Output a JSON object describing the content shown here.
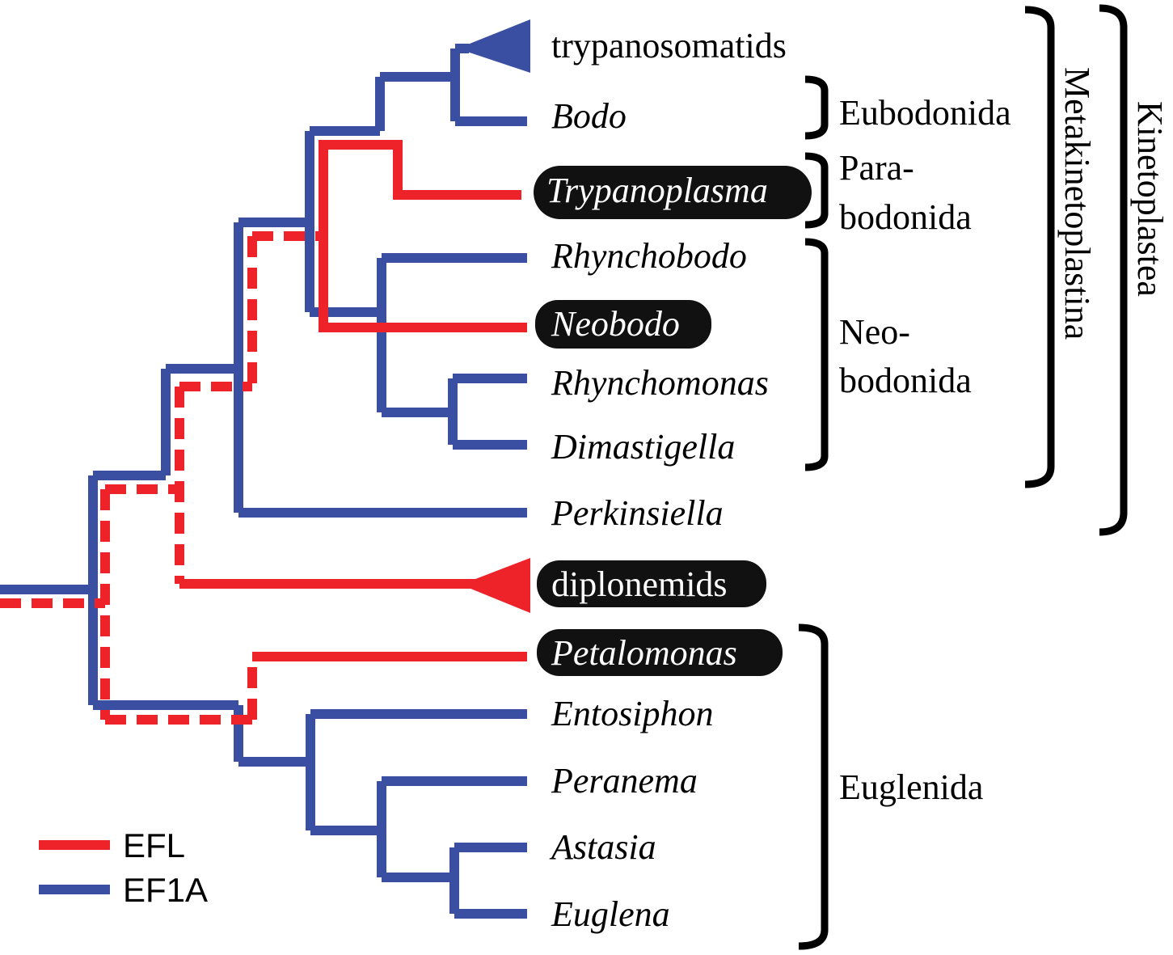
{
  "colors": {
    "efl": "#ee2229",
    "ef1a": "#3a4ea2",
    "bracket": "#000000",
    "highlight_bg": "#111111",
    "highlight_text": "#ffffff"
  },
  "taxa": [
    {
      "id": "trypanosomatids",
      "label": "trypanosomatids",
      "italic": false,
      "highlight": false,
      "gene": "ef1a",
      "clade": true
    },
    {
      "id": "bodo",
      "label": "Bodo",
      "italic": true,
      "highlight": false,
      "gene": "ef1a"
    },
    {
      "id": "trypanoplasma",
      "label": "Trypanoplasma",
      "italic": true,
      "highlight": true,
      "gene": "efl"
    },
    {
      "id": "rhynchobodo",
      "label": "Rhynchobodo",
      "italic": true,
      "highlight": false,
      "gene": "ef1a"
    },
    {
      "id": "neobodo",
      "label": "Neobodo",
      "italic": true,
      "highlight": true,
      "gene": "efl"
    },
    {
      "id": "rhynchomonas",
      "label": "Rhynchomonas",
      "italic": true,
      "highlight": false,
      "gene": "ef1a"
    },
    {
      "id": "dimastigella",
      "label": "Dimastigella",
      "italic": true,
      "highlight": false,
      "gene": "ef1a"
    },
    {
      "id": "perkinsiella",
      "label": "Perkinsiella",
      "italic": true,
      "highlight": false,
      "gene": "ef1a"
    },
    {
      "id": "diplonemids",
      "label": "diplonemids",
      "italic": false,
      "highlight": true,
      "gene": "efl",
      "clade": true
    },
    {
      "id": "petalomonas",
      "label": "Petalomonas",
      "italic": true,
      "highlight": true,
      "gene": "efl"
    },
    {
      "id": "entosiphon",
      "label": "Entosiphon",
      "italic": true,
      "highlight": false,
      "gene": "ef1a"
    },
    {
      "id": "peranema",
      "label": "Peranema",
      "italic": true,
      "highlight": false,
      "gene": "ef1a"
    },
    {
      "id": "astasia",
      "label": "Astasia",
      "italic": true,
      "highlight": false,
      "gene": "ef1a"
    },
    {
      "id": "euglena",
      "label": "Euglena",
      "italic": true,
      "highlight": false,
      "gene": "ef1a"
    }
  ],
  "groups": {
    "eubodonida": "Eubodonida",
    "parabodonida": [
      "Para-",
      "bodonida"
    ],
    "neobodonida": [
      "Neo-",
      "bodonida"
    ],
    "euglenida": "Euglenida",
    "metakinetoplastina": "Metakinetoplastina",
    "kinetoplastea": "Kinetoplastea"
  },
  "legend": [
    {
      "label": "EFL",
      "gene": "efl"
    },
    {
      "label": "EF1A",
      "gene": "ef1a"
    }
  ]
}
